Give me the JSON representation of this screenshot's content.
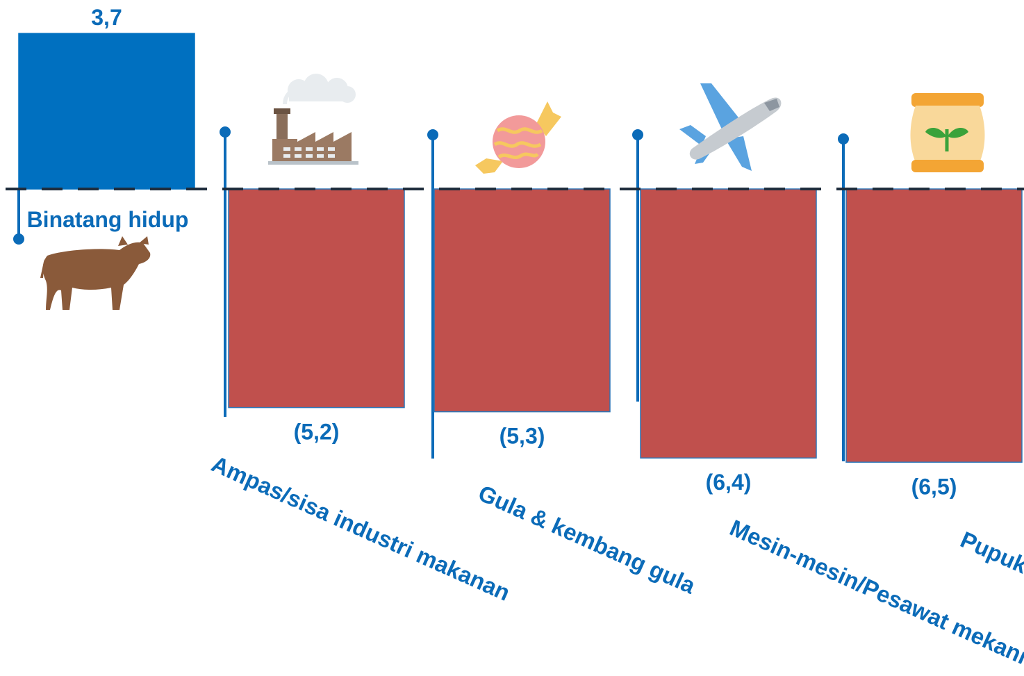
{
  "chart_data": {
    "type": "bar",
    "title": "",
    "xlabel": "",
    "ylabel": "",
    "categories": [
      "Binatang hidup",
      "Ampas/sisa industri makanan",
      "Gula & kembang gula",
      "Mesin-mesin/Pesawat mekanik",
      "Pupuk"
    ],
    "values": [
      3.7,
      -5.2,
      -5.3,
      -6.4,
      -6.5
    ],
    "value_labels": [
      "3,7",
      "(5,2)",
      "(5,3)",
      "(6,4)",
      "(6,5)"
    ],
    "icons": [
      "cow-icon",
      "factory-icon",
      "candy-icon",
      "airplane-icon",
      "fertilizer-bag-icon"
    ],
    "colors": {
      "positive": "#0070c0",
      "negative": "#c0504d",
      "label": "#0b6bb8",
      "pin": "#0b6bb8",
      "baseline": "#1f2d3d"
    },
    "baseline": "dashed",
    "grid": false,
    "legend": "none"
  }
}
